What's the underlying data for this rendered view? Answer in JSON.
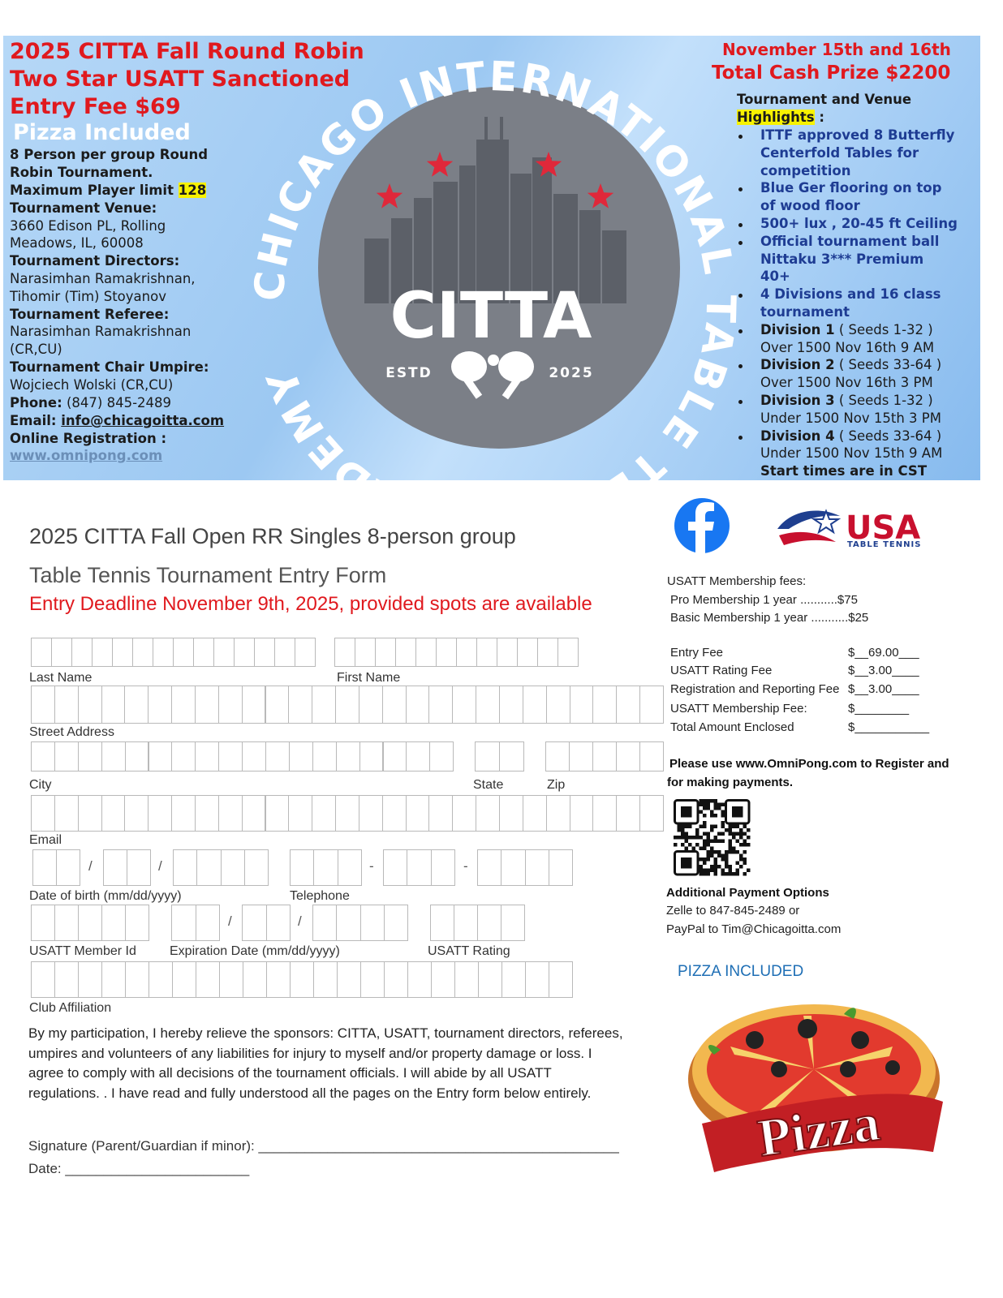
{
  "banner": {
    "headline": [
      "2025 CITTA  Fall Round Robin",
      "Two Star USATT Sanctioned",
      "Entry Fee $69"
    ],
    "pizza": "Pizza Included",
    "info": [
      "8 Person per group Round",
      "Robin Tournament.",
      "Maximum Player limit",
      "128",
      "Tournament Venue:",
      "3660 Edison PL, Rolling",
      "Meadows,  IL, 60008",
      "Tournament Directors:",
      "Narasimhan Ramakrishnan,",
      "Tihomir  (Tim) Stoyanov",
      "Tournament Referee:",
      "Narasimhan Ramakrishnan",
      "(CR,CU)",
      "Tournament Chair Umpire:",
      "Wojciech Wolski (CR,CU)",
      "Phone:",
      "(847) 845-2489",
      "Email:",
      "info@chicagoitta.com",
      "Online Registration :",
      "www.omnipong.com"
    ],
    "logo": {
      "ring": "CHICAGO INTERNATIONAL TABLE TENNIS ACADEMY",
      "name": "CITTA",
      "estd": "ESTD",
      "year": "2025"
    },
    "date": "November 15th and 16th",
    "prize": "Total Cash Prize $2200",
    "highlights_heading": [
      "Tournament and Venue",
      "Highlights",
      ":"
    ],
    "highlights": [
      [
        "ITTF approved 8 Butterfly",
        "Centerfold Tables for",
        "competition"
      ],
      [
        "Blue Ger flooring on top",
        "of wood floor"
      ],
      [
        "500+ lux , 20-45 ft Ceiling"
      ],
      [
        "Official tournament ball",
        "Nittaku 3*** Premium",
        "40+"
      ],
      [
        "4 Divisions and 16 class",
        "tournament"
      ]
    ],
    "divisions": [
      {
        "name": "Division 1",
        "seeds": "( Seeds 1-32 )",
        "time": "Over 1500 Nov 16th 9 AM"
      },
      {
        "name": "Division 2",
        "seeds": "( Seeds 33-64 )",
        "time": "Over 1500  Nov 16th 3 PM"
      },
      {
        "name": "Division 3",
        "seeds": "( Seeds 1-32 )",
        "time": "Under 1500  Nov 15th  3 PM"
      },
      {
        "name": "Division 4",
        "seeds": "( Seeds 33-64 )",
        "time": "Under 1500  Nov 15th 9 AM"
      }
    ],
    "note": "Start times are in CST"
  },
  "form": {
    "title": "2025 CITTA Fall Open RR Singles 8-person group",
    "subtitle": "Table Tennis Tournament Entry Form",
    "deadline": "Entry Deadline November 9th, 2025, provided spots are available",
    "labels": {
      "last_name": "Last Name",
      "first_name": "First Name",
      "street": "Street Address",
      "city": "City",
      "state": "State",
      "zip": "Zip",
      "email": "Email",
      "dob": "Date of birth (mm/dd/yyyy)",
      "telephone": "Telephone",
      "member_id": "USATT Member Id",
      "expiration": "Expiration Date (mm/dd/yyyy)",
      "rating": "USATT Rating",
      "club": "Club Affiliation"
    },
    "date_separator": "/",
    "phone_separator": "-",
    "waiver": [
      "By my participation, I hereby relieve the sponsors: CITTA, USATT, tournament directors, referees,",
      "umpires and volunteers of any liabilities for injury to myself and/or property damage or loss. I",
      "agree to comply with all decisions of the tournament officials.  I will abide by all USATT",
      "regulations. . I have read and fully understood all the pages on the Entry form below entirely."
    ],
    "signature": "Signature (Parent/Guardian if minor): _______________________________________________",
    "date": "Date: ________________________"
  },
  "sidebar": {
    "usa_logo": [
      "USA",
      "TABLE TENNIS"
    ],
    "membership_heading": "USATT Membership fees:",
    "membership": [
      "Pro Membership 1 year  ...........$75",
      "Basic Membership 1 year ...........$25"
    ],
    "fees": [
      {
        "item": "Entry Fee",
        "amount": "$__69.00___"
      },
      {
        "item": "USATT Rating Fee",
        "amount": "$__3.00____"
      },
      {
        "item": "Registration and Reporting Fee",
        "amount": "$__3.00____"
      },
      {
        "item": "USATT Membership Fee:",
        "amount": "$________"
      },
      {
        "item": "Total Amount Enclosed",
        "amount": "$___________"
      }
    ],
    "register_note": [
      "Please use www.OmniPong.com to Register and",
      "for making payments."
    ],
    "payment_heading": "Additional Payment Options",
    "payment_options": [
      "Zelle to 847-845-2489 or",
      "PayPal to Tim@Chicagoitta.com"
    ],
    "pizza_heading": "PIZZA INCLUDED",
    "pizza_banner": "Pizza"
  }
}
